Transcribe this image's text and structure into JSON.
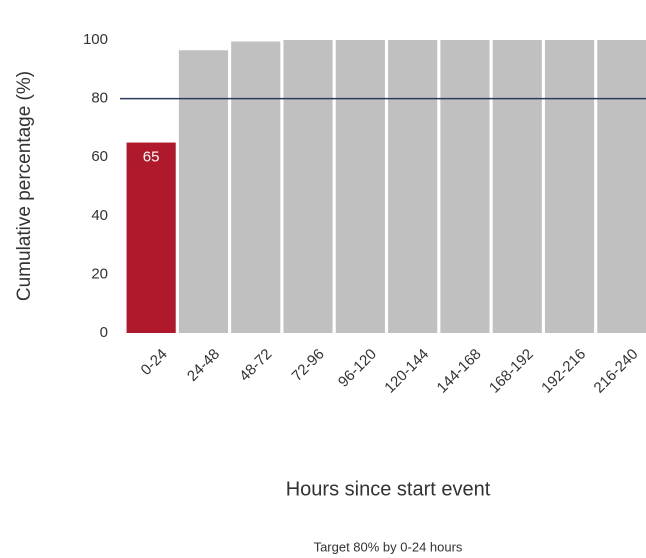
{
  "chart_data": {
    "type": "bar",
    "categories": [
      "0-24",
      "24-48",
      "48-72",
      "72-96",
      "96-120",
      "120-144",
      "144-168",
      "168-192",
      "192-216",
      "216-240"
    ],
    "values": [
      65,
      96.5,
      99.5,
      100,
      100,
      100,
      100,
      100,
      100,
      100
    ],
    "color": "#c0c0c0",
    "below_target_color": "#b0182b",
    "target": 80,
    "target_color": "#2e3a5c",
    "ylim": [
      0,
      100
    ],
    "yticks": [
      0,
      20,
      40,
      60,
      80,
      100
    ],
    "y_label": "Cumulative percentage (%)",
    "x_label": "Hours since start event",
    "caption": "Target 80% by 0-24 hours"
  }
}
